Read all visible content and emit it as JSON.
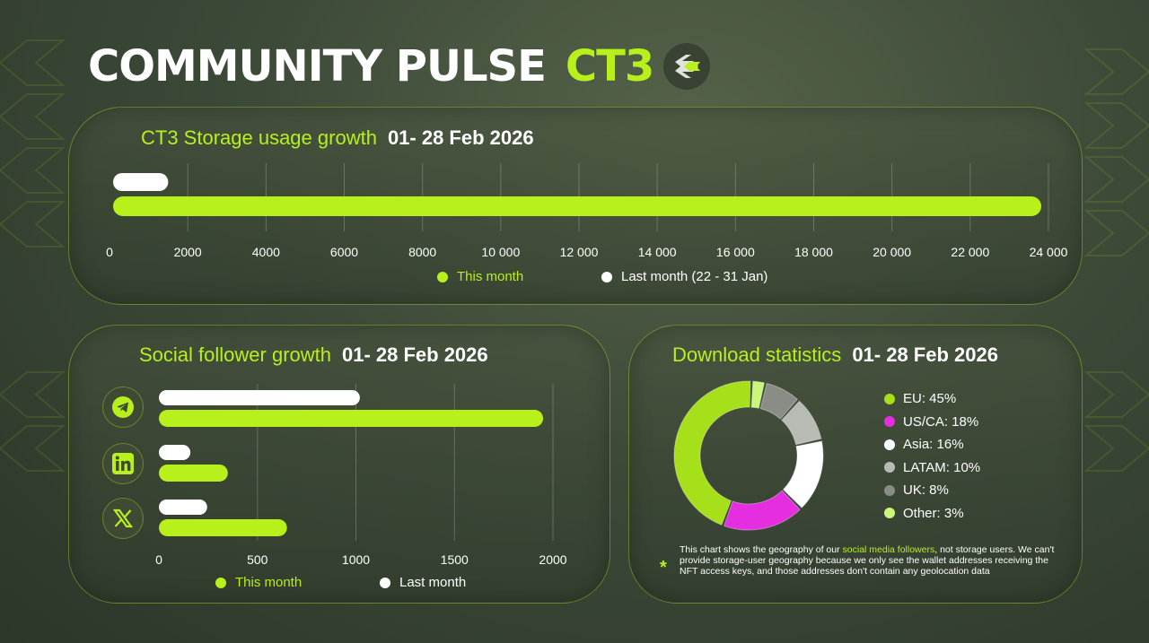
{
  "header": {
    "title": "COMMUNITY PULSE",
    "brand": "CT3",
    "logo_icon": "ct3-logo-icon"
  },
  "colors": {
    "accent": "#b8f01c",
    "last_month": "#ffffff"
  },
  "storage": {
    "title": "CT3 Storage usage growth",
    "date": "01- 28 Feb 2026",
    "legend": {
      "this_month": "This month",
      "last_month": "Last month (22 - 31 Jan)"
    }
  },
  "social": {
    "title": "Social follower growth",
    "date": "01- 28 Feb 2026",
    "legend": {
      "this_month": "This month",
      "last_month": "Last month"
    },
    "icons": [
      "telegram-icon",
      "linkedin-icon",
      "x-icon"
    ]
  },
  "downloads": {
    "title": "Download statistics",
    "date": "01- 28 Feb 2026",
    "legend": [
      {
        "label": "EU: 45%",
        "color": "#a6e01a"
      },
      {
        "label": "US/CA: 18%",
        "color": "#e52ee0"
      },
      {
        "label": "Asia: 16%",
        "color": "#ffffff"
      },
      {
        "label": "LATAM: 10%",
        "color": "#b7bbb3"
      },
      {
        "label": "UK: 8%",
        "color": "#8a8d86"
      },
      {
        "label": "Other: 3%",
        "color": "#c9f77a"
      }
    ],
    "footnote": {
      "pre": "This chart shows the geography of our ",
      "link": "social media followers",
      "post": ", not storage users. We can't provide storage-user geography because we only see the wallet addresses receiving the NFT access keys, and those addresses don't contain any geolocation data"
    }
  },
  "chart_data": [
    {
      "type": "bar",
      "orientation": "horizontal",
      "title": "CT3 Storage usage growth",
      "categories": [
        ""
      ],
      "series": [
        {
          "name": "This month",
          "values": [
            24000
          ]
        },
        {
          "name": "Last month (22 - 31 Jan)",
          "values": [
            1500
          ]
        }
      ],
      "xlim": [
        0,
        24000
      ],
      "ticks": [
        "0",
        "2000",
        "4000",
        "6000",
        "8000",
        "10 000",
        "12 000",
        "14 000",
        "16 000",
        "18 000",
        "20 000",
        "22 000",
        "24 000"
      ],
      "grid": true,
      "legend": "bottom"
    },
    {
      "type": "bar",
      "orientation": "horizontal",
      "title": "Social follower growth",
      "categories": [
        "Telegram",
        "LinkedIn",
        "X"
      ],
      "series": [
        {
          "name": "This month",
          "values": [
            1950,
            350,
            650
          ]
        },
        {
          "name": "Last month",
          "values": [
            1020,
            160,
            245
          ]
        }
      ],
      "xlim": [
        0,
        2000
      ],
      "ticks": [
        "0",
        "500",
        "1000",
        "1500",
        "2000"
      ],
      "grid": true,
      "legend": "bottom"
    },
    {
      "type": "pie",
      "title": "Download statistics",
      "donut": true,
      "categories": [
        "EU",
        "US/CA",
        "Asia",
        "LATAM",
        "UK",
        "Other"
      ],
      "values": [
        45,
        18,
        16,
        10,
        8,
        3
      ],
      "legend": "right"
    }
  ]
}
